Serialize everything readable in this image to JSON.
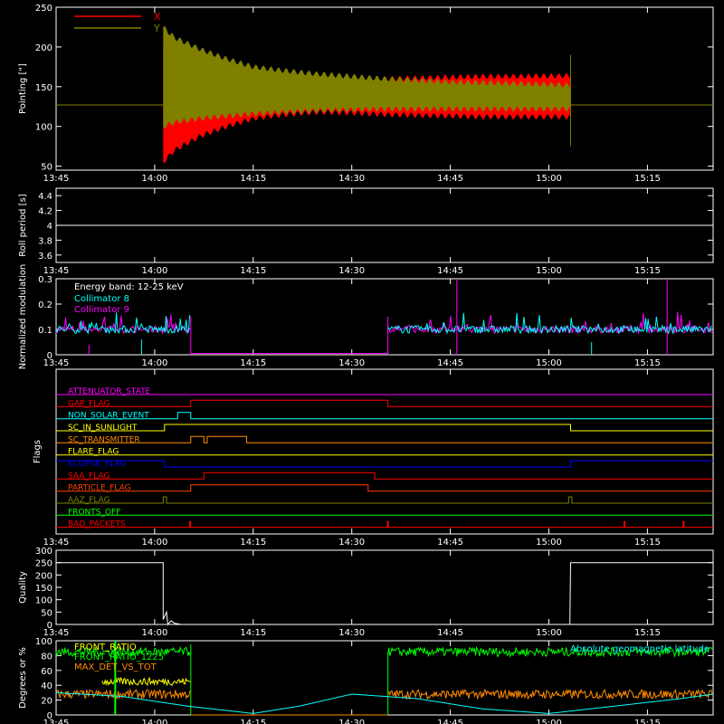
{
  "chart_data": [
    {
      "type": "area",
      "ylabel": "Pointing [\"]",
      "ylim": [
        45,
        250
      ],
      "yticks": [
        50,
        100,
        150,
        200,
        250
      ],
      "xlim_minutes": [
        0,
        100
      ],
      "xtick_labels": [
        "13:45",
        "14:00",
        "14:15",
        "14:30",
        "14:45",
        "15:00",
        "15:15"
      ],
      "xtick_minutes": [
        0,
        15,
        30,
        45,
        60,
        75,
        90
      ],
      "series": [
        {
          "name": "X",
          "color": "#ff0000",
          "t": [
            16.3,
            18,
            22,
            26,
            30,
            35,
            40,
            45,
            50,
            55,
            60,
            65,
            70,
            78.3
          ],
          "upper": [
            195,
            185,
            172,
            163,
            158,
            155,
            156,
            158,
            160,
            161,
            162,
            163,
            163,
            164
          ],
          "lower": [
            55,
            70,
            88,
            100,
            110,
            115,
            118,
            117,
            115,
            114,
            113,
            112,
            112,
            112
          ]
        },
        {
          "name": "Y",
          "color": "#808000",
          "t": [
            16.3,
            18,
            22,
            26,
            30,
            35,
            40,
            45,
            50,
            55,
            60,
            65,
            70,
            78.3
          ],
          "upper": [
            225,
            212,
            197,
            185,
            175,
            170,
            166,
            163,
            160,
            158,
            156,
            155,
            154,
            152
          ],
          "lower": [
            100,
            105,
            110,
            113,
            116,
            118,
            120,
            121,
            122,
            122,
            122,
            122,
            122,
            122
          ]
        }
      ],
      "baseline": {
        "color": "#808000",
        "value": 127
      }
    },
    {
      "type": "line",
      "ylabel": "Roll period [s]",
      "ylim": [
        3.5,
        4.5
      ],
      "yticks": [
        3.6,
        3.8,
        4.0,
        4.2,
        4.4
      ],
      "series": [
        {
          "color": "#ffffff",
          "value": 4.0
        }
      ]
    },
    {
      "type": "line",
      "ylabel": "Normalized modulation",
      "ylim": [
        0,
        0.3
      ],
      "yticks": [
        0.0,
        0.1,
        0.2,
        0.3
      ],
      "annotation": "Energy band: 12-25 keV",
      "series": [
        {
          "name": "Collimator 8",
          "color": "#00ffff"
        },
        {
          "name": "Collimator 9",
          "color": "#ff00ff"
        }
      ],
      "active_segments_minutes": [
        [
          0,
          20.5
        ],
        [
          50.5,
          100
        ]
      ],
      "mean_level": 0.1
    },
    {
      "type": "line",
      "ylabel": "Flags",
      "flags": [
        {
          "name": "ATTENUATOR_STATE",
          "color": "#ff00ff",
          "transitions": []
        },
        {
          "name": "GAP_FLAG",
          "color": "#ff0000",
          "transitions": [
            [
              20.5,
              1
            ],
            [
              50.5,
              0
            ]
          ]
        },
        {
          "name": "NON_SOLAR_EVENT",
          "color": "#00ffff",
          "transitions": [
            [
              18.5,
              1
            ],
            [
              20.5,
              0
            ]
          ]
        },
        {
          "name": "SC_IN_SUNLIGHT",
          "color": "#ffff00",
          "transitions": [
            [
              16.5,
              1
            ],
            [
              78.3,
              0
            ]
          ]
        },
        {
          "name": "SC_TRANSMITTER",
          "color": "#ff8c00",
          "transitions": [
            [
              20.5,
              1
            ],
            [
              22.5,
              0
            ],
            [
              23,
              1
            ],
            [
              29,
              0
            ]
          ]
        },
        {
          "name": "FLARE_FLAG",
          "color": "#ffff00",
          "transitions": []
        },
        {
          "name": "ECLIPSE_FLAG",
          "color": "#0000ff",
          "transitions": [
            [
              16.5,
              0
            ],
            [
              78.3,
              1
            ]
          ]
        },
        {
          "name": "SAA_FLAG",
          "color": "#ff0000",
          "transitions": [
            [
              22.5,
              1
            ],
            [
              48.5,
              0
            ]
          ]
        },
        {
          "name": "PARTICLE_FLAG",
          "color": "#ff4500",
          "transitions": [
            [
              20.5,
              1
            ],
            [
              47.5,
              0
            ]
          ]
        },
        {
          "name": "AAZ_FLAG",
          "color": "#808000",
          "transitions": [
            [
              16.3,
              1
            ],
            [
              16.8,
              0
            ],
            [
              78.0,
              1
            ],
            [
              78.5,
              0
            ]
          ]
        },
        {
          "name": "FRONTS_OFF",
          "color": "#00ff00",
          "transitions": []
        },
        {
          "name": "BAD_PACKETS",
          "color": "#ff0000",
          "spikes": [
            20.4,
            50.5,
            86.5,
            95.5
          ]
        }
      ]
    },
    {
      "type": "line",
      "ylabel": "Quality",
      "ylim": [
        0,
        300
      ],
      "yticks": [
        0,
        50,
        100,
        150,
        200,
        250,
        300
      ],
      "series": [
        {
          "color": "#ffffff",
          "segments": [
            [
              [
                0,
                250
              ],
              [
                16.3,
                250
              ],
              [
                16.3,
                20
              ],
              [
                16.8,
                50
              ],
              [
                17,
                0
              ],
              [
                17.5,
                15
              ],
              [
                18,
                5
              ],
              [
                19,
                0
              ],
              [
                78.2,
                0
              ],
              [
                78.3,
                250
              ],
              [
                100,
                250
              ]
            ]
          ]
        }
      ]
    },
    {
      "type": "line",
      "ylabel": "Degrees or %",
      "ylim": [
        0,
        100
      ],
      "yticks": [
        0,
        20,
        40,
        60,
        80,
        100
      ],
      "legend_right": "Absolute geomagnetic latitude",
      "series": [
        {
          "name": "FRONT_RATIO",
          "color": "#ffff00",
          "level": 45,
          "range_minutes": [
            7,
            20.5
          ]
        },
        {
          "name": "FRONT_RATIO_1225",
          "color": "#00ff00",
          "level": 85,
          "ranges_minutes": [
            [
              0,
              20.5
            ],
            [
              50.5,
              100
            ]
          ]
        },
        {
          "name": "MAX_DET_VS_TOT",
          "color": "#ff8c00",
          "level": 28,
          "ranges_minutes": [
            [
              0,
              20.5
            ],
            [
              50.5,
              100
            ]
          ]
        },
        {
          "name": "Absolute geomagnetic latitude",
          "color": "#00ffff",
          "x": [
            0,
            10,
            20,
            30,
            37,
            45,
            55,
            65,
            75,
            85,
            95,
            100
          ],
          "y": [
            30,
            25,
            12,
            2,
            12,
            28,
            22,
            8,
            2,
            12,
            22,
            28
          ]
        }
      ]
    }
  ]
}
